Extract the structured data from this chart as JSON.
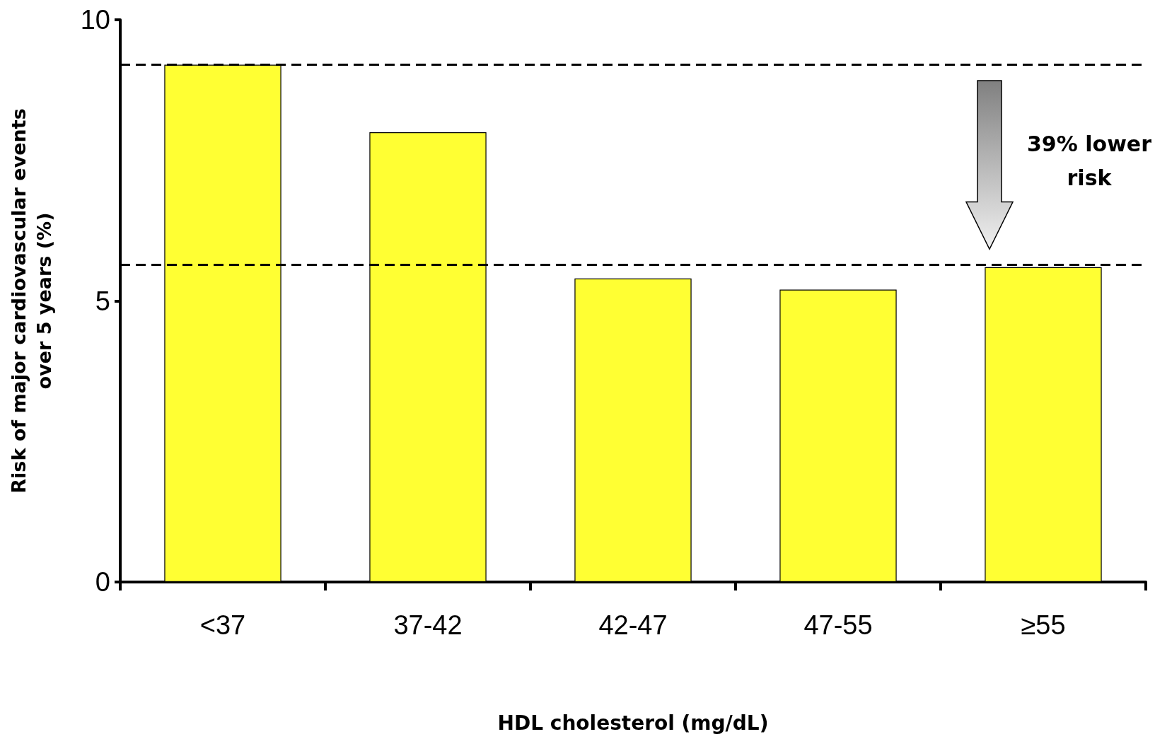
{
  "chart_data": {
    "type": "bar",
    "xlabel": "HDL cholesterol (mg/dL)",
    "ylabel": "Risk of major cardiovascular events\nover 5 years (%)",
    "categories": [
      "<37",
      "37-42",
      "42-47",
      "47-55",
      "≥55"
    ],
    "values": [
      9.2,
      8.0,
      5.4,
      5.2,
      5.6
    ],
    "color": "#ffff33",
    "ylim": [
      0,
      10
    ],
    "yticks": [
      0,
      5,
      10
    ],
    "grid": false,
    "ref_lines": [
      {
        "axis": "y",
        "value": 9.2,
        "color": "#000000",
        "line_style": "dashed"
      },
      {
        "axis": "y",
        "value": 5.65,
        "color": "#000000",
        "line_style": "dashed"
      }
    ],
    "annotations": [
      "39% lower\nrisk"
    ]
  }
}
